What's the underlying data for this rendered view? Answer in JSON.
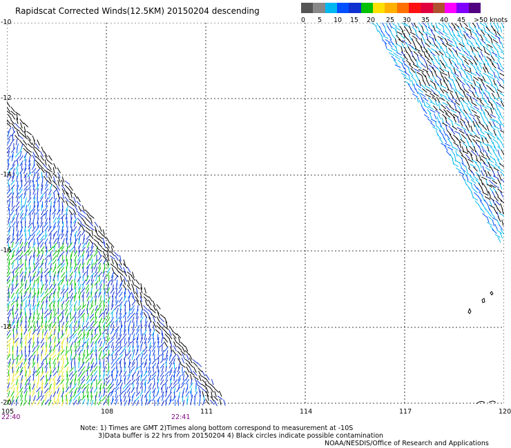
{
  "title": "Rapidscat Corrected Winds(12.5KM) 20150204 descending",
  "scale": {
    "colors": [
      "#555555",
      "#888888",
      "#00b8f0",
      "#0050ff",
      "#1030d0",
      "#00c000",
      "#ffe000",
      "#ffb000",
      "#ff7000",
      "#ff1010",
      "#e00040",
      "#b05030",
      "#ff00ff",
      "#8000ff",
      "#500080"
    ],
    "labels": [
      "0",
      "5",
      "10",
      "15",
      "20",
      "25",
      "30",
      "35",
      "40",
      "45",
      ">50 knots"
    ]
  },
  "axes": {
    "lat_labels": [
      "-10",
      "-12",
      "-14",
      "-16",
      "-18",
      "-20"
    ],
    "lon_labels": [
      "105",
      "108",
      "111",
      "114",
      "117",
      "120"
    ],
    "time_labels": [
      "22:40",
      "22:41"
    ]
  },
  "notes": {
    "line1": "Note: 1) Times are GMT 2)Times along bottom correspond to measurement at -10S",
    "line2": "3)Data buffer is 22 hrs from 20150204 4) Black circles indicate possible contamination"
  },
  "credit": "NOAA/NESDIS/Office of Research and Applications"
}
